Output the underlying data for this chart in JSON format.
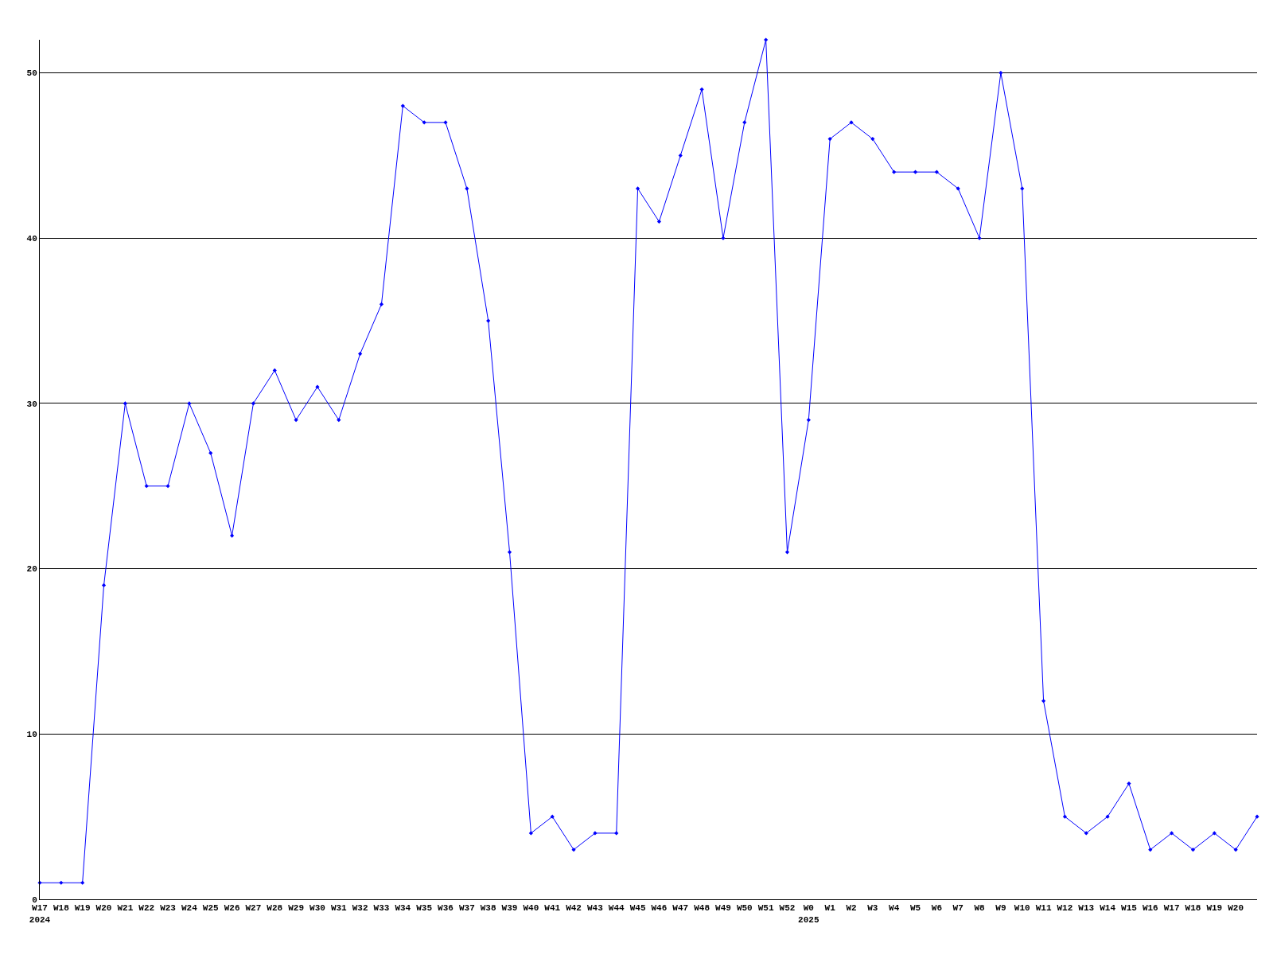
{
  "chart_data": {
    "type": "line",
    "categories": [
      "W17\n2024",
      "W18",
      "W19",
      "W20",
      "W21",
      "W22",
      "W23",
      "W24",
      "W25",
      "W26",
      "W27",
      "W28",
      "W29",
      "W30",
      "W31",
      "W32",
      "W33",
      "W34",
      "W35",
      "W36",
      "W37",
      "W38",
      "W39",
      "W40",
      "W41",
      "W42",
      "W43",
      "W44",
      "W45",
      "W46",
      "W47",
      "W48",
      "W49",
      "W50",
      "W51",
      "W52",
      "W0\n2025",
      "W1",
      "W2",
      "W3",
      "W4",
      "W5",
      "W6",
      "W7",
      "W8",
      "W9",
      "W10",
      "W11",
      "W12",
      "W13",
      "W14",
      "W15",
      "W16",
      "W17",
      "W18",
      "W19",
      "W20",
      null
    ],
    "series": [
      {
        "color": "#0000ff",
        "values": [
          1,
          1,
          1,
          19,
          30,
          25,
          25,
          30,
          27,
          22,
          30,
          32,
          29,
          31,
          29,
          33,
          36,
          48,
          47,
          47,
          43,
          35,
          21,
          4,
          5,
          3,
          4,
          4,
          43,
          41,
          45,
          49,
          40,
          47,
          52,
          21,
          29,
          46,
          47,
          46,
          44,
          44,
          44,
          43,
          40,
          50,
          43,
          12,
          5,
          4,
          5,
          7,
          3,
          4,
          3,
          4,
          3,
          5
        ]
      }
    ],
    "ylim": [
      0,
      52
    ],
    "yticks": [
      0,
      10,
      20,
      30,
      40,
      50
    ],
    "grid": "y",
    "marker": "diamond",
    "line_style": "solid"
  }
}
